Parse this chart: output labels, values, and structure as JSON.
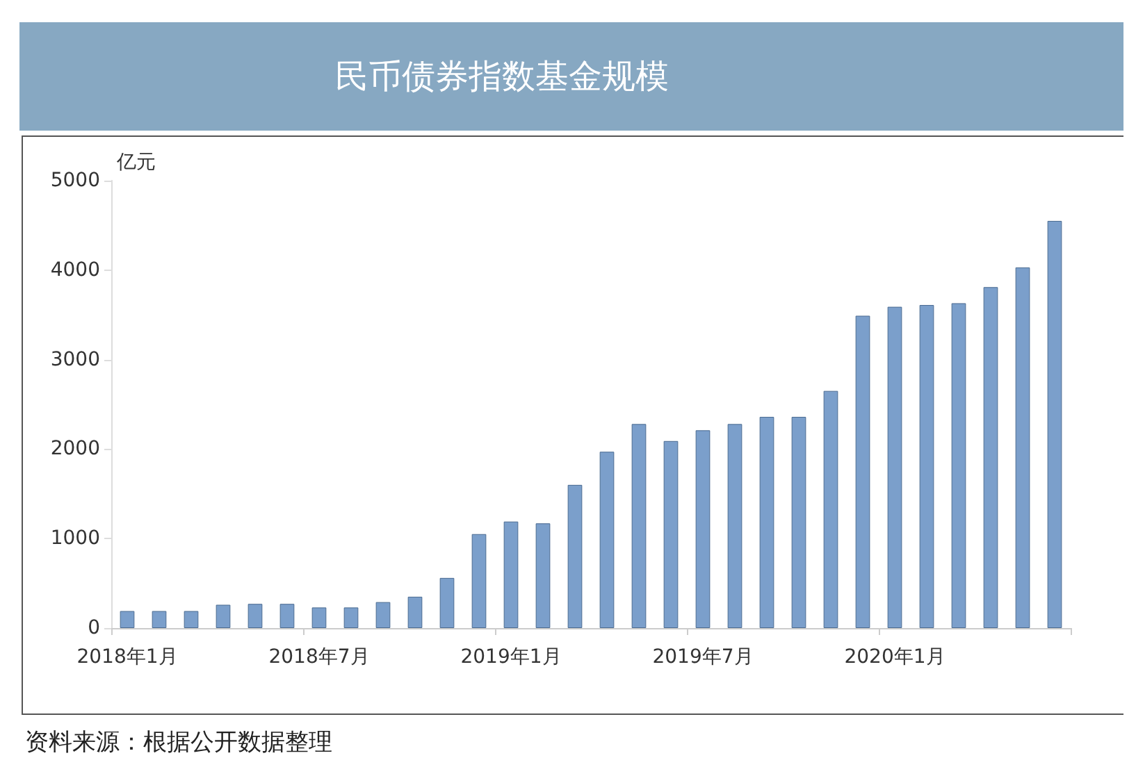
{
  "chart_data": {
    "type": "bar",
    "title": "民币债券指数基金规模",
    "ylabel": "亿元",
    "categories": [
      "2018年1月",
      null,
      null,
      null,
      null,
      null,
      "2018年7月",
      null,
      null,
      null,
      null,
      null,
      "2019年1月",
      null,
      null,
      null,
      null,
      null,
      "2019年7月",
      null,
      null,
      null,
      null,
      null,
      "2020年1月",
      null,
      null,
      null,
      null,
      null
    ],
    "values": [
      190,
      190,
      190,
      260,
      270,
      270,
      230,
      230,
      290,
      350,
      560,
      1050,
      1190,
      1170,
      1600,
      1970,
      2280,
      2090,
      2210,
      2280,
      2360,
      2360,
      2650,
      3490,
      3590,
      3610,
      3630,
      3810,
      4030,
      4550
    ],
    "color": "#7b9fcb",
    "ylim": [
      0,
      5000
    ],
    "yticks": [
      0,
      1000,
      2000,
      3000,
      4000,
      5000
    ],
    "grid": false,
    "annotations": [
      "资料来源：根据公开数据整理"
    ]
  }
}
